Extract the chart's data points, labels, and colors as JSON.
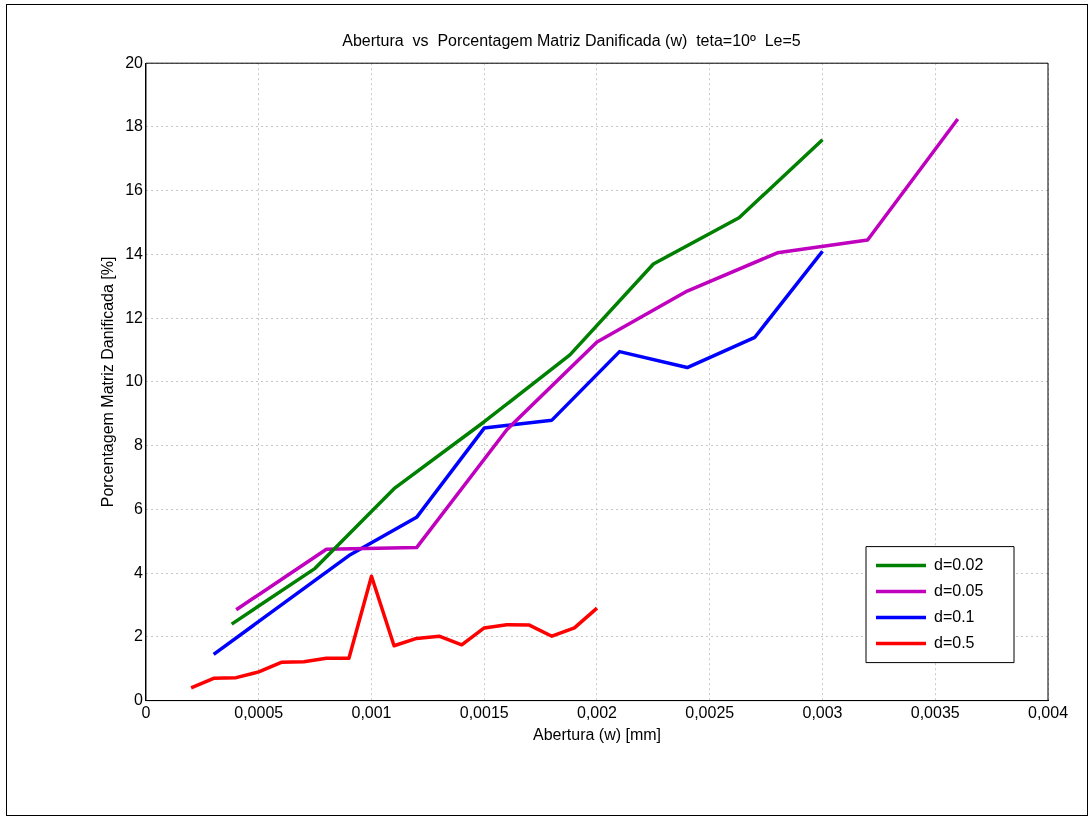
{
  "chart_data": {
    "type": "line",
    "title": "Abertura  vs  Porcentagem Matriz Danificada (w)  teta=10º  Le=5",
    "xlabel": "Abertura (w) [mm]",
    "ylabel": "Porcentagem Matriz Danificada [%]",
    "xlim": [
      0,
      0.004
    ],
    "xticks": [
      0,
      {
        "value": 0.0005,
        "label": "0,0005"
      },
      {
        "value": 0.001,
        "label": "0,001"
      },
      {
        "value": 0.0015,
        "label": "0,0015"
      },
      {
        "value": 0.002,
        "label": "0,002"
      },
      {
        "value": 0.0025,
        "label": "0,0025"
      },
      {
        "value": 0.003,
        "label": "0,003"
      },
      {
        "value": 0.0035,
        "label": "0,0035"
      },
      {
        "value": 0.004,
        "label": "0,004"
      }
    ],
    "ylim": [
      0,
      20
    ],
    "yticks": [
      0,
      2,
      4,
      6,
      8,
      10,
      12,
      14,
      16,
      18,
      20
    ],
    "grid": true,
    "legend": "bottom right",
    "marker": "none",
    "line_style": "solid",
    "series": [
      {
        "name": "d=0.02",
        "color": "#008000",
        "x": [
          0.00038,
          0.00075,
          0.0011,
          0.0015,
          0.00188,
          0.00225,
          0.00263,
          0.003
        ],
        "values": [
          2.4,
          4.15,
          6.65,
          8.75,
          10.85,
          13.7,
          15.15,
          17.6
        ]
      },
      {
        "name": "d=0.05",
        "color": "#bf00bf",
        "x": [
          0.0004,
          0.0008,
          0.0012,
          0.0016,
          0.002,
          0.0024,
          0.0028,
          0.0032,
          0.0036
        ],
        "values": [
          2.85,
          4.75,
          4.8,
          8.5,
          11.25,
          12.85,
          14.05,
          14.45,
          18.25
        ]
      },
      {
        "name": "d=0.1",
        "color": "#0000ff",
        "x": [
          0.0003,
          0.0009,
          0.0012,
          0.0015,
          0.0018,
          0.0021,
          0.0024,
          0.0027,
          0.003
        ],
        "values": [
          1.45,
          4.55,
          5.75,
          8.55,
          8.8,
          10.95,
          10.45,
          11.4,
          14.1
        ]
      },
      {
        "name": "d=0.5",
        "color": "#ff0000",
        "x": [
          0.0002,
          0.0003,
          0.0004,
          0.0005,
          0.0006,
          0.0007,
          0.0008,
          0.0009,
          0.001,
          0.0011,
          0.0012,
          0.0013,
          0.0014,
          0.0015,
          0.0016,
          0.0017,
          0.0018,
          0.0019,
          0.002
        ],
        "values": [
          0.4,
          0.7,
          0.72,
          0.9,
          1.2,
          1.22,
          1.33,
          1.33,
          3.9,
          1.72,
          1.95,
          2.02,
          1.75,
          2.28,
          2.38,
          2.37,
          2.02,
          2.28,
          2.9
        ]
      }
    ]
  }
}
